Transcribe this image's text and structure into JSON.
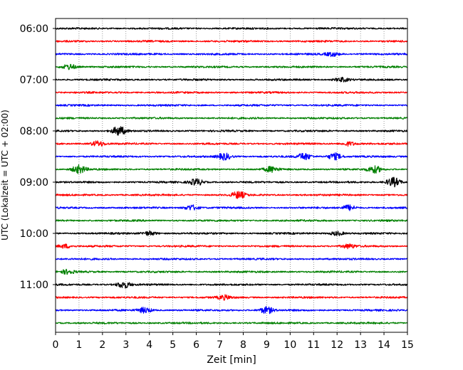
{
  "chart_data": {
    "type": "line",
    "subtype": "helicorder",
    "xlabel": "Zeit  [min]",
    "ylabel": "UTC (Lokalzeit = UTC + 02:00)",
    "xlim": [
      0,
      15
    ],
    "x_ticks": [
      0,
      1,
      2,
      3,
      4,
      5,
      6,
      7,
      8,
      9,
      10,
      11,
      12,
      13,
      14,
      15
    ],
    "x_grid": true,
    "y_grid": false,
    "trace_interval_minutes": 15,
    "start_time": "06:00",
    "y_tick_labels": [
      "06:00",
      "07:00",
      "08:00",
      "09:00",
      "10:00",
      "11:00"
    ],
    "trace_color_cycle": [
      "#000000",
      "#ff0000",
      "#0000ff",
      "#008000"
    ],
    "traces": [
      {
        "start": "06:00",
        "color": "#000000",
        "events": []
      },
      {
        "start": "06:15",
        "color": "#ff0000",
        "events": []
      },
      {
        "start": "06:30",
        "color": "#0000ff",
        "events": [
          {
            "t": 11.8,
            "amp": 0.3
          }
        ]
      },
      {
        "start": "06:45",
        "color": "#008000",
        "events": [
          {
            "t": 0.6,
            "amp": 0.4
          }
        ]
      },
      {
        "start": "07:00",
        "color": "#000000",
        "events": [
          {
            "t": 12.2,
            "amp": 0.3
          }
        ]
      },
      {
        "start": "07:15",
        "color": "#ff0000",
        "events": []
      },
      {
        "start": "07:30",
        "color": "#0000ff",
        "events": []
      },
      {
        "start": "07:45",
        "color": "#008000",
        "events": []
      },
      {
        "start": "08:00",
        "color": "#000000",
        "events": [
          {
            "t": 2.7,
            "amp": 0.7
          }
        ]
      },
      {
        "start": "08:15",
        "color": "#ff0000",
        "events": [
          {
            "t": 1.8,
            "amp": 0.4
          },
          {
            "t": 12.5,
            "amp": 0.3
          }
        ]
      },
      {
        "start": "08:30",
        "color": "#0000ff",
        "events": [
          {
            "t": 7.2,
            "amp": 0.5
          },
          {
            "t": 10.6,
            "amp": 0.5
          },
          {
            "t": 11.9,
            "amp": 0.5
          }
        ]
      },
      {
        "start": "08:45",
        "color": "#008000",
        "events": [
          {
            "t": 1.0,
            "amp": 0.6
          },
          {
            "t": 9.2,
            "amp": 0.4
          },
          {
            "t": 13.6,
            "amp": 0.5
          }
        ]
      },
      {
        "start": "09:00",
        "color": "#000000",
        "events": [
          {
            "t": 6.0,
            "amp": 0.5
          },
          {
            "t": 14.4,
            "amp": 0.7
          }
        ]
      },
      {
        "start": "09:15",
        "color": "#ff0000",
        "events": [
          {
            "t": 7.8,
            "amp": 0.5
          }
        ]
      },
      {
        "start": "09:30",
        "color": "#0000ff",
        "events": [
          {
            "t": 5.8,
            "amp": 0.4
          },
          {
            "t": 12.5,
            "amp": 0.4
          }
        ]
      },
      {
        "start": "09:45",
        "color": "#008000",
        "events": []
      },
      {
        "start": "10:00",
        "color": "#000000",
        "events": [
          {
            "t": 4.0,
            "amp": 0.3
          },
          {
            "t": 12.0,
            "amp": 0.3
          }
        ]
      },
      {
        "start": "10:15",
        "color": "#ff0000",
        "events": [
          {
            "t": 0.4,
            "amp": 0.3
          },
          {
            "t": 12.5,
            "amp": 0.3
          }
        ]
      },
      {
        "start": "10:30",
        "color": "#0000ff",
        "events": []
      },
      {
        "start": "10:45",
        "color": "#008000",
        "events": [
          {
            "t": 0.5,
            "amp": 0.3
          }
        ]
      },
      {
        "start": "11:00",
        "color": "#000000",
        "events": [
          {
            "t": 2.9,
            "amp": 0.5
          }
        ]
      },
      {
        "start": "11:15",
        "color": "#ff0000",
        "events": [
          {
            "t": 7.2,
            "amp": 0.3
          }
        ]
      },
      {
        "start": "11:30",
        "color": "#0000ff",
        "events": [
          {
            "t": 3.8,
            "amp": 0.4
          },
          {
            "t": 9.0,
            "amp": 0.5
          }
        ]
      },
      {
        "start": "11:45",
        "color": "#008000",
        "events": []
      }
    ]
  }
}
